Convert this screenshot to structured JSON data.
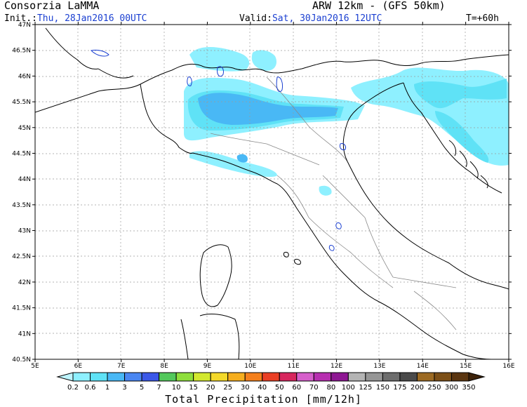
{
  "header": {
    "org": "Consorzia LaMMA",
    "model": "ARW 12km - (GFS 50km)",
    "init_label": "Init.:",
    "init_value": "Thu, 28Jan2016 00UTC",
    "valid_label": "Valid:",
    "valid_value": "Sat, 30Jan2016 12UTC",
    "lead": "T=+60h"
  },
  "axes": {
    "lat_labels": [
      "47N",
      "46.5N",
      "46N",
      "45.5N",
      "45N",
      "44.5N",
      "44N",
      "43.5N",
      "43N",
      "42.5N",
      "42N",
      "41.5N",
      "41N",
      "40.5N"
    ],
    "lon_labels": [
      "5E",
      "6E",
      "7E",
      "8E",
      "9E",
      "10E",
      "11E",
      "12E",
      "13E",
      "14E",
      "15E",
      "16E"
    ]
  },
  "colorbar": {
    "title": "Total Precipitation [mm/12h]",
    "levels": [
      "0.2",
      "0.6",
      "1",
      "3",
      "5",
      "7",
      "10",
      "15",
      "20",
      "25",
      "30",
      "40",
      "50",
      "60",
      "70",
      "80",
      "100",
      "125",
      "150",
      "175",
      "200",
      "250",
      "300",
      "350"
    ],
    "colors": [
      "#bff5ff",
      "#8ef0ff",
      "#5fe2f6",
      "#49b8f5",
      "#4a86f2",
      "#3b58e8",
      "#52c85b",
      "#8ede3c",
      "#d2e82f",
      "#f4d92a",
      "#f6ae1e",
      "#f47f1c",
      "#ea3f25",
      "#d7265e",
      "#d65fcb",
      "#b72fb0",
      "#8e1793",
      "#b4b4b4",
      "#969696",
      "#6d6d6d",
      "#4a4a4a",
      "#9c6a23",
      "#7c4f17",
      "#5a3510",
      "#3d230a"
    ]
  },
  "precip_colors": {
    "light": "#8ef0ff",
    "medium": "#5fe2f6",
    "heavy": "#49b8f5"
  }
}
